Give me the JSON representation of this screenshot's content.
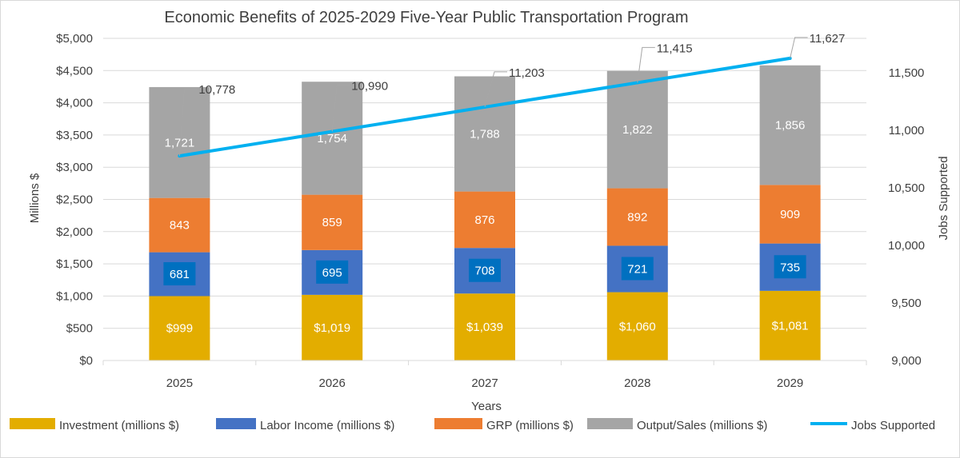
{
  "chart_data": {
    "type": "bar",
    "stacked": true,
    "title": "Economic Benefits of 2025-2029 Five-Year Public Transportation Program",
    "xlabel": "Years",
    "ylabel": "Millions $",
    "y2label": "Jobs Supported",
    "categories": [
      "2025",
      "2026",
      "2027",
      "2028",
      "2029"
    ],
    "ylim": [
      0,
      5000
    ],
    "y2lim": [
      9000,
      11800
    ],
    "yticks": [
      0,
      500,
      1000,
      1500,
      2000,
      2500,
      3000,
      3500,
      4000,
      4500,
      5000
    ],
    "ytick_labels": [
      "$0",
      "$500",
      "$1,000",
      "$1,500",
      "$2,000",
      "$2,500",
      "$3,000",
      "$3,500",
      "$4,000",
      "$4,500",
      "$5,000"
    ],
    "y2ticks": [
      9000,
      9500,
      10000,
      10500,
      11000,
      11500
    ],
    "y2tick_labels": [
      "9,000",
      "9,500",
      "10,000",
      "10,500",
      "11,000",
      "11,500"
    ],
    "series": [
      {
        "name": "Investment (millions $)",
        "color": "#E3AD00",
        "values": [
          999,
          1019,
          1039,
          1060,
          1081
        ],
        "labels": [
          "$999",
          "$1,019",
          "$1,039",
          "$1,060",
          "$1,081"
        ]
      },
      {
        "name": "Labor Income (millions $)",
        "color": "#4472C4",
        "label_box_color": "#0070C0",
        "values": [
          681,
          695,
          708,
          721,
          735
        ],
        "labels": [
          "681",
          "695",
          "708",
          "721",
          "735"
        ]
      },
      {
        "name": "GRP (millions $)",
        "color": "#ED7D31",
        "values": [
          843,
          859,
          876,
          892,
          909
        ],
        "labels": [
          "843",
          "859",
          "876",
          "892",
          "909"
        ]
      },
      {
        "name": "Output/Sales (millions $)",
        "color": "#A5A5A5",
        "values": [
          1721,
          1754,
          1788,
          1822,
          1856
        ],
        "labels": [
          "1,721",
          "1,754",
          "1,788",
          "1,822",
          "1,856"
        ]
      }
    ],
    "line_series": {
      "name": "Jobs Supported",
      "color": "#00B0F0",
      "axis": "secondary",
      "values": [
        10778,
        10990,
        11203,
        11415,
        11627
      ],
      "labels": [
        "10,778",
        "10,990",
        "11,203",
        "11,415",
        "11,627"
      ]
    },
    "legend_position": "bottom",
    "grid": true
  }
}
